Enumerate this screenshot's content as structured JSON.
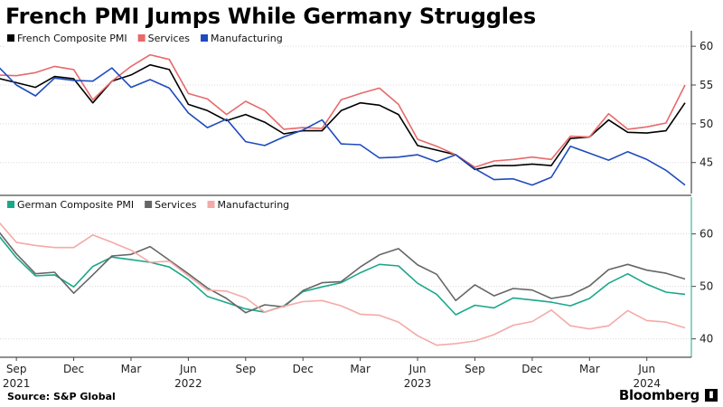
{
  "title": "French PMI Jumps While Germany Struggles",
  "source": "Source: S&P Global",
  "brand": "Bloomberg",
  "brand_icon": "bloomberg-terminal-icon",
  "chart_data": [
    {
      "type": "line",
      "panel": "top",
      "title": "",
      "xlabel": "",
      "ylabel": "",
      "ylim": [
        41,
        62
      ],
      "yticks": [
        45,
        50,
        55,
        60
      ],
      "legend": "top-left",
      "x": [
        "2021-08",
        "2021-09",
        "2021-10",
        "2021-11",
        "2021-12",
        "2022-01",
        "2022-02",
        "2022-03",
        "2022-04",
        "2022-05",
        "2022-06",
        "2022-07",
        "2022-08",
        "2022-09",
        "2022-10",
        "2022-11",
        "2022-12",
        "2023-01",
        "2023-02",
        "2023-03",
        "2023-04",
        "2023-05",
        "2023-06",
        "2023-07",
        "2023-08",
        "2023-09",
        "2023-10",
        "2023-11",
        "2023-12",
        "2024-01",
        "2024-02",
        "2024-03",
        "2024-04",
        "2024-05",
        "2024-06",
        "2024-07",
        "2024-08"
      ],
      "series": [
        {
          "name": "French Composite PMI",
          "color": "#000000",
          "values": [
            55.9,
            55.3,
            54.7,
            56.1,
            55.8,
            52.7,
            55.5,
            56.3,
            57.6,
            57.0,
            52.5,
            51.7,
            50.4,
            51.2,
            50.2,
            48.7,
            49.1,
            49.1,
            51.7,
            52.7,
            52.4,
            51.2,
            47.2,
            46.6,
            46.0,
            44.1,
            44.6,
            44.6,
            44.8,
            44.6,
            48.1,
            48.3,
            50.5,
            48.9,
            48.8,
            49.1,
            52.7
          ]
        },
        {
          "name": "Services",
          "color": "#e8696a",
          "values": [
            56.3,
            56.2,
            56.6,
            57.4,
            57.0,
            53.1,
            55.5,
            57.4,
            58.9,
            58.3,
            53.9,
            53.2,
            51.2,
            52.9,
            51.7,
            49.3,
            49.5,
            49.4,
            53.1,
            53.9,
            54.6,
            52.5,
            48.0,
            47.1,
            46.0,
            44.4,
            45.2,
            45.4,
            45.7,
            45.4,
            48.4,
            48.3,
            51.3,
            49.3,
            49.6,
            50.1,
            55.0
          ]
        },
        {
          "name": "Manufacturing",
          "color": "#1f4bbd",
          "values": [
            57.5,
            55.0,
            53.6,
            55.9,
            55.6,
            55.5,
            57.2,
            54.7,
            55.7,
            54.6,
            51.4,
            49.5,
            50.6,
            47.7,
            47.2,
            48.3,
            49.2,
            50.5,
            47.4,
            47.3,
            45.6,
            45.7,
            46.0,
            45.1,
            46.0,
            44.2,
            42.8,
            42.9,
            42.1,
            43.1,
            47.1,
            46.2,
            45.3,
            46.4,
            45.4,
            44.0,
            42.1
          ]
        }
      ]
    },
    {
      "type": "line",
      "panel": "bottom",
      "title": "",
      "xlabel": "",
      "ylabel": "",
      "ylim": [
        36.5,
        67
      ],
      "yticks": [
        40,
        50,
        60
      ],
      "legend": "top-left",
      "x": [
        "2021-08",
        "2021-09",
        "2021-10",
        "2021-11",
        "2021-12",
        "2022-01",
        "2022-02",
        "2022-03",
        "2022-04",
        "2022-05",
        "2022-06",
        "2022-07",
        "2022-08",
        "2022-09",
        "2022-10",
        "2022-11",
        "2022-12",
        "2023-01",
        "2023-02",
        "2023-03",
        "2023-04",
        "2023-05",
        "2023-06",
        "2023-07",
        "2023-08",
        "2023-09",
        "2023-10",
        "2023-11",
        "2023-12",
        "2024-01",
        "2024-02",
        "2024-03",
        "2024-04",
        "2024-05",
        "2024-06",
        "2024-07",
        "2024-08"
      ],
      "series": [
        {
          "name": "German Composite PMI",
          "color": "#1aa88a",
          "values": [
            60.0,
            55.5,
            52.0,
            52.2,
            49.9,
            53.8,
            55.6,
            55.1,
            54.6,
            53.7,
            51.3,
            48.1,
            46.9,
            45.7,
            45.1,
            46.3,
            49.0,
            49.9,
            50.7,
            52.6,
            54.2,
            53.9,
            50.6,
            48.5,
            44.6,
            46.4,
            45.9,
            47.8,
            47.4,
            47.0,
            46.3,
            47.7,
            50.6,
            52.4,
            50.4,
            48.9,
            48.5
          ]
        },
        {
          "name": "Services",
          "color": "#666666",
          "values": [
            60.8,
            56.2,
            52.4,
            52.7,
            48.7,
            52.2,
            55.8,
            56.1,
            57.6,
            55.0,
            52.4,
            49.7,
            47.7,
            45.0,
            46.5,
            46.1,
            49.2,
            50.7,
            50.9,
            53.7,
            56.0,
            57.2,
            54.1,
            52.3,
            47.3,
            50.3,
            48.2,
            49.6,
            49.3,
            47.7,
            48.3,
            50.1,
            53.2,
            54.2,
            53.1,
            52.5,
            51.4
          ]
        },
        {
          "name": "Manufacturing",
          "color": "#f4aaa6",
          "values": [
            62.6,
            58.4,
            57.8,
            57.4,
            57.4,
            59.8,
            58.4,
            56.9,
            54.6,
            54.8,
            52.0,
            49.3,
            49.1,
            47.8,
            45.1,
            46.2,
            47.1,
            47.3,
            46.3,
            44.7,
            44.5,
            43.2,
            40.6,
            38.8,
            39.1,
            39.6,
            40.8,
            42.6,
            43.3,
            45.5,
            42.5,
            41.9,
            42.5,
            45.4,
            43.5,
            43.2,
            42.1
          ]
        }
      ]
    }
  ],
  "x_axis": {
    "month_labels": [
      {
        "label": "Sep",
        "index": 1
      },
      {
        "label": "Dec",
        "index": 4
      },
      {
        "label": "Mar",
        "index": 7
      },
      {
        "label": "Jun",
        "index": 10
      },
      {
        "label": "Sep",
        "index": 13
      },
      {
        "label": "Dec",
        "index": 16
      },
      {
        "label": "Mar",
        "index": 19
      },
      {
        "label": "Jun",
        "index": 22
      },
      {
        "label": "Sep",
        "index": 25
      },
      {
        "label": "Dec",
        "index": 28
      },
      {
        "label": "Mar",
        "index": 31
      },
      {
        "label": "Jun",
        "index": 34
      }
    ],
    "year_labels": [
      {
        "label": "2021",
        "index": 1
      },
      {
        "label": "2022",
        "index": 10
      },
      {
        "label": "2023",
        "index": 22
      },
      {
        "label": "2024",
        "index": 34
      }
    ]
  }
}
